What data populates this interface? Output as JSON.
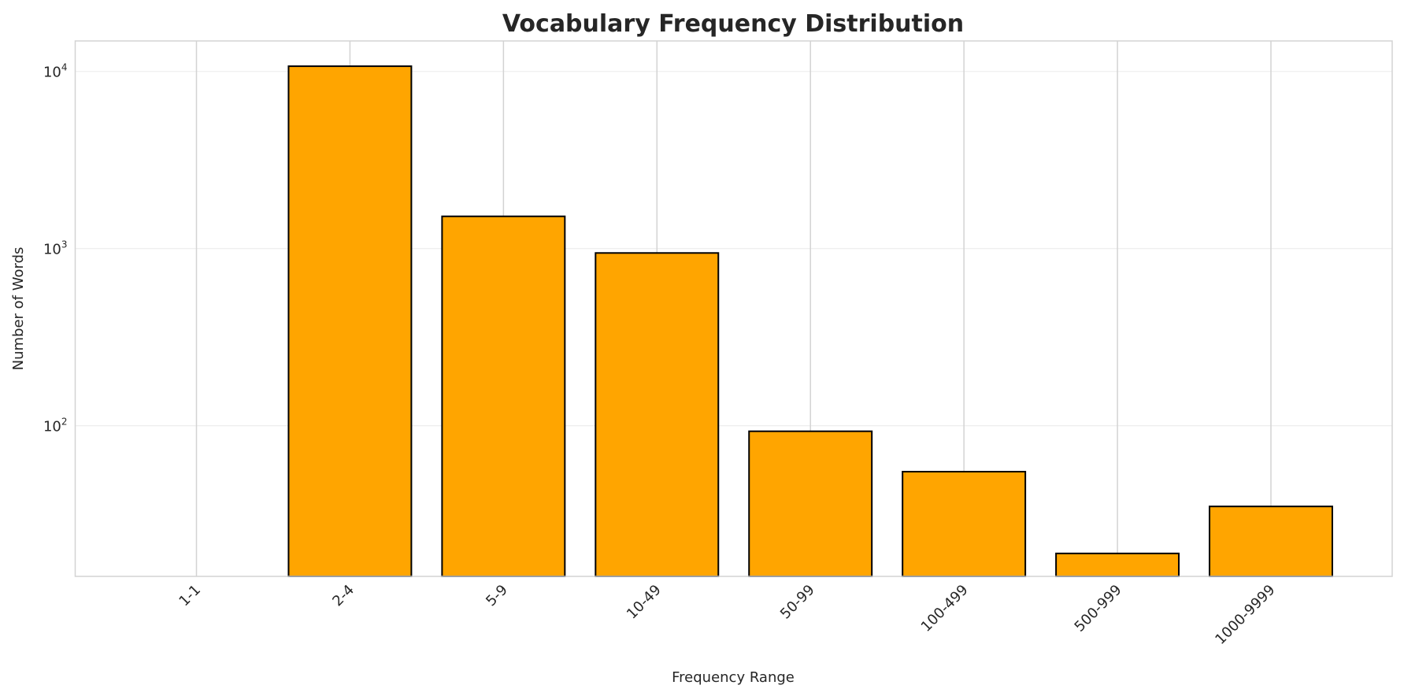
{
  "chart_data": {
    "type": "bar",
    "title": "Vocabulary Frequency Distribution",
    "xlabel": "Frequency Range",
    "ylabel": "Number of Words",
    "yscale": "log",
    "categories": [
      "1-1",
      "2-4",
      "5-9",
      "10-49",
      "50-99",
      "100-499",
      "500-999",
      "1000-9999"
    ],
    "values": [
      0,
      10700,
      1520,
      944,
      93,
      55,
      19,
      35
    ],
    "ylim": [
      14.1,
      14860
    ],
    "yticks": [
      {
        "value": 100,
        "base": "10",
        "exp": "2"
      },
      {
        "value": 1000,
        "base": "10",
        "exp": "3"
      },
      {
        "value": 10000,
        "base": "10",
        "exp": "4"
      }
    ],
    "grid": true,
    "colors": {
      "bar_fill": "#FFA500",
      "bar_edge": "#000000",
      "grid": "#D3D3D3",
      "hgrid": "#EEEEEE"
    }
  }
}
